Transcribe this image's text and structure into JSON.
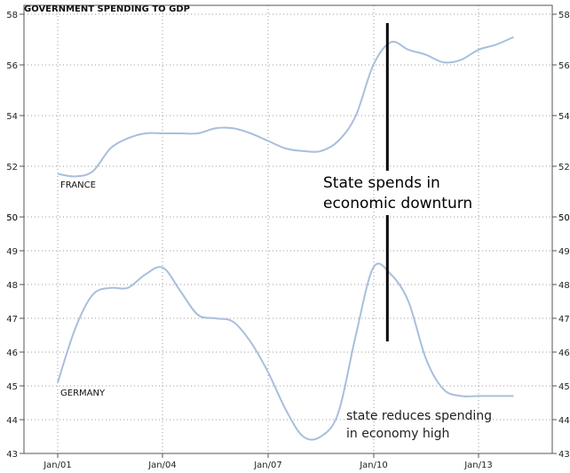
{
  "chart_data": {
    "type": "line",
    "title": "GOVERNMENT SPENDING TO GDP",
    "x_ticks": [
      "Jan/01",
      "Jan/04",
      "Jan/07",
      "Jan/10",
      "Jan/13"
    ],
    "panels": [
      {
        "series_label": "FRANCE",
        "ylim": [
          50,
          58
        ],
        "y_ticks": [
          "50",
          "52",
          "54",
          "56",
          "58"
        ],
        "x": [
          2001.0,
          2001.5,
          2002.0,
          2002.5,
          2003.0,
          2003.5,
          2004.0,
          2004.5,
          2005.0,
          2005.5,
          2006.0,
          2006.5,
          2007.0,
          2007.5,
          2008.0,
          2008.5,
          2009.0,
          2009.5,
          2010.0,
          2010.5,
          2011.0,
          2011.5,
          2012.0,
          2012.5,
          2013.0,
          2013.5,
          2014.0
        ],
        "values": [
          51.7,
          51.6,
          51.8,
          52.7,
          53.1,
          53.3,
          53.3,
          53.3,
          53.3,
          53.5,
          53.5,
          53.3,
          53.0,
          52.7,
          52.6,
          52.6,
          53.0,
          54.0,
          56.0,
          56.9,
          56.6,
          56.4,
          56.1,
          56.2,
          56.6,
          56.8,
          57.1
        ]
      },
      {
        "series_label": "GERMANY",
        "ylim": [
          43,
          50
        ],
        "y_ticks": [
          "43",
          "44",
          "45",
          "46",
          "47",
          "48",
          "49",
          "50"
        ],
        "x": [
          2001.0,
          2001.5,
          2002.0,
          2002.5,
          2003.0,
          2003.5,
          2004.0,
          2004.5,
          2005.0,
          2005.5,
          2006.0,
          2006.5,
          2007.0,
          2007.5,
          2008.0,
          2008.5,
          2009.0,
          2009.5,
          2010.0,
          2010.5,
          2011.0,
          2011.5,
          2012.0,
          2012.5,
          2013.0,
          2013.5,
          2014.0
        ],
        "values": [
          45.1,
          46.7,
          47.7,
          47.9,
          47.9,
          48.3,
          48.5,
          47.8,
          47.1,
          47.0,
          46.9,
          46.3,
          45.4,
          44.3,
          43.5,
          43.5,
          44.2,
          46.5,
          48.5,
          48.3,
          47.5,
          45.8,
          44.9,
          44.7,
          44.7,
          44.7,
          44.7
        ]
      }
    ],
    "annotations": {
      "top": [
        "State spends in",
        "economic downturn"
      ],
      "bottom": [
        "state reduces spending",
        "in economy high"
      ]
    },
    "marker_x": 2010.4,
    "grid": "dotted",
    "line_color": "#a8bfdc",
    "marker_color": "#000000"
  }
}
